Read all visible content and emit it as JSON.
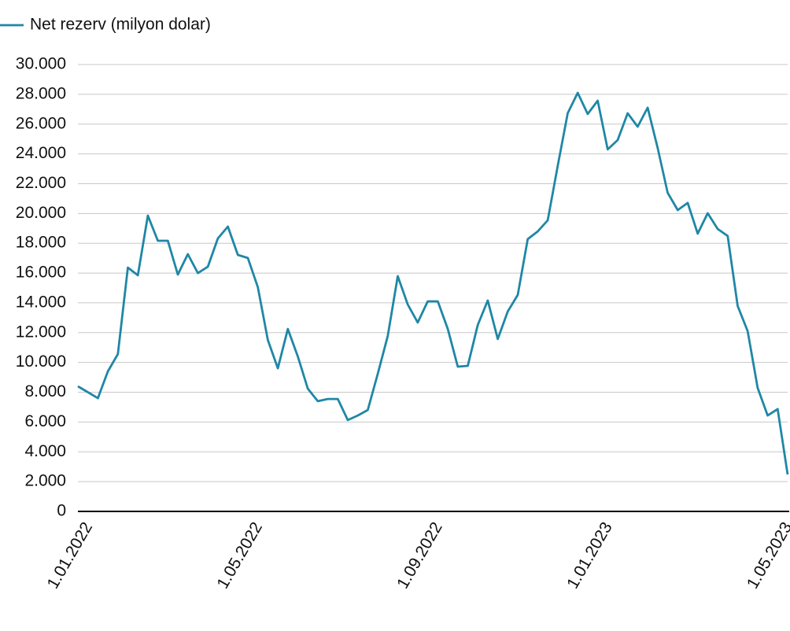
{
  "chart_data": {
    "type": "line",
    "categories": [
      "1.01.2022",
      null,
      null,
      null,
      null,
      null,
      null,
      null,
      null,
      null,
      null,
      null,
      null,
      null,
      null,
      null,
      null,
      "1.05.2022",
      null,
      null,
      null,
      null,
      null,
      null,
      null,
      null,
      null,
      null,
      null,
      null,
      null,
      null,
      null,
      null,
      null,
      "1.09.2022",
      null,
      null,
      null,
      null,
      null,
      null,
      null,
      null,
      null,
      null,
      null,
      null,
      null,
      null,
      null,
      null,
      "1.01.2023",
      null,
      null,
      null,
      null,
      null,
      null,
      null,
      null,
      null,
      null,
      null,
      null,
      null,
      null,
      null,
      null,
      null,
      "1.05.2023",
      null
    ],
    "series": [
      {
        "name": "Net rezerv (milyon dolar)",
        "color": "#1f87a5",
        "values": [
          8400,
          8000,
          7600,
          9400,
          10560,
          16370,
          15850,
          19860,
          18170,
          18170,
          15900,
          17270,
          16000,
          16430,
          18330,
          19120,
          17220,
          17010,
          15050,
          11510,
          9610,
          12250,
          10400,
          8240,
          7400,
          7550,
          7550,
          6130,
          6440,
          6810,
          9240,
          11780,
          15790,
          13890,
          12680,
          14100,
          14100,
          12250,
          9720,
          9770,
          12520,
          14160,
          11570,
          13420,
          14530,
          18280,
          18800,
          19540,
          23190,
          26730,
          28100,
          26680,
          27570,
          24300,
          24930,
          26730,
          25830,
          27100,
          24400,
          21390,
          20230,
          20710,
          18650,
          20020,
          18960,
          18490,
          13790,
          12100,
          8290,
          6440,
          6870,
          2480
        ]
      }
    ],
    "ylim": [
      0,
      30000
    ],
    "yticks": [
      0,
      {
        "value": 2000,
        "label": "2.000"
      },
      {
        "value": 4000,
        "label": "4.000"
      },
      {
        "value": 6000,
        "label": "6.000"
      },
      {
        "value": 8000,
        "label": "8.000"
      },
      {
        "value": 10000,
        "label": "10.000"
      },
      {
        "value": 12000,
        "label": "12.000"
      },
      {
        "value": 14000,
        "label": "14.000"
      },
      {
        "value": 16000,
        "label": "16.000"
      },
      {
        "value": 18000,
        "label": "18.000"
      },
      {
        "value": 20000,
        "label": "20.000"
      },
      {
        "value": 22000,
        "label": "22.000"
      },
      {
        "value": 24000,
        "label": "24.000"
      },
      {
        "value": 26000,
        "label": "26.000"
      },
      {
        "value": 28000,
        "label": "28.000"
      },
      {
        "value": 30000,
        "label": "30.000"
      }
    ],
    "grid": true
  }
}
